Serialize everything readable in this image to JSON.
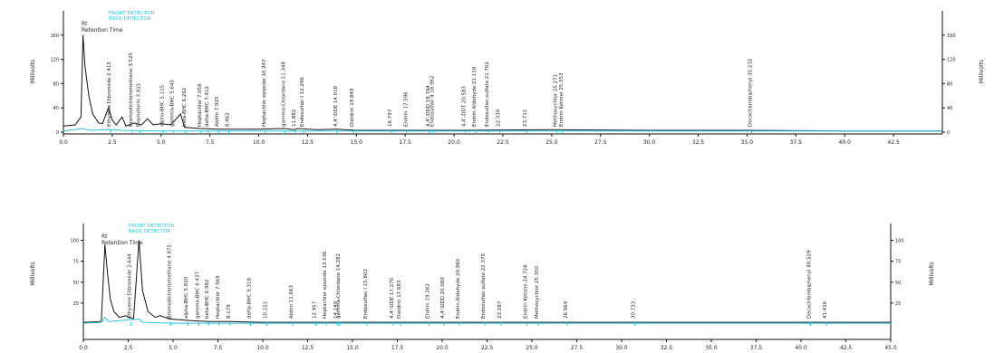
{
  "chart_data": [
    {
      "type": "line",
      "x_axis": {
        "range": [
          0.0,
          45.0
        ],
        "ticks": [
          0.0,
          2.5,
          5.0,
          7.5,
          10.0,
          12.5,
          15.0,
          17.5,
          20.0,
          22.5,
          25.0,
          27.5,
          30.0,
          32.5,
          35.0,
          37.5,
          40.0,
          42.5
        ],
        "tick_labels": [
          "0.0",
          "2.5",
          "5.0",
          "7.5",
          "10.0",
          "12.5",
          "15.0",
          "17.5",
          "20.0",
          "22.5",
          "25.0",
          "27.5",
          "30.0",
          "32.5",
          "35.0",
          "37.5",
          "40.0",
          "42.5"
        ]
      },
      "y_axis": {
        "label": "Millivolts",
        "right_label": "Millivolts",
        "range": [
          0,
          200
        ],
        "ticks": [
          0,
          40,
          80,
          120,
          160
        ],
        "tick_labels": [
          "0",
          "40",
          "80",
          "120",
          "160"
        ],
        "right_tick_labels": [
          "0",
          "40",
          "80",
          "120",
          "160"
        ]
      },
      "legend": [
        "FRONT DETECTOR",
        "BACK DETECTOR"
      ],
      "legend_colors": [
        "#22c4e0",
        "#22c4e0"
      ],
      "annotations": [
        "Rt",
        "Retention Time"
      ],
      "grid": false,
      "series": [
        {
          "name": "FRONT DETECTOR",
          "color": "#111111",
          "points": [
            [
              0.0,
              10
            ],
            [
              0.6,
              12
            ],
            [
              0.9,
              25
            ],
            [
              1.0,
              160
            ],
            [
              1.1,
              110
            ],
            [
              1.3,
              60
            ],
            [
              1.5,
              30
            ],
            [
              1.8,
              15
            ],
            [
              2.0,
              14
            ],
            [
              2.3,
              40
            ],
            [
              2.5,
              20
            ],
            [
              2.7,
              12
            ],
            [
              3.0,
              25
            ],
            [
              3.2,
              10
            ],
            [
              3.6,
              15
            ],
            [
              4.0,
              12
            ],
            [
              4.3,
              22
            ],
            [
              4.6,
              12
            ],
            [
              5.0,
              14
            ],
            [
              5.5,
              12
            ],
            [
              6.0,
              30
            ],
            [
              6.2,
              8
            ],
            [
              7.0,
              6
            ],
            [
              8.0,
              5
            ],
            [
              10.0,
              5
            ],
            [
              11.3,
              6
            ],
            [
              11.8,
              4
            ],
            [
              12.0,
              6
            ],
            [
              13.0,
              4
            ],
            [
              14.0,
              5
            ],
            [
              15.0,
              3
            ],
            [
              20.0,
              3
            ],
            [
              25.0,
              4
            ],
            [
              30.0,
              3
            ],
            [
              35.0,
              3
            ],
            [
              40.0,
              2
            ],
            [
              45.0,
              2
            ]
          ]
        },
        {
          "name": "BACK DETECTOR",
          "color": "#22c4e0",
          "points": [
            [
              0.0,
              2
            ],
            [
              1.0,
              6
            ],
            [
              1.2,
              4
            ],
            [
              1.5,
              3
            ],
            [
              2.3,
              4
            ],
            [
              3.0,
              3
            ],
            [
              5.0,
              2
            ],
            [
              10.0,
              2
            ],
            [
              20.0,
              2
            ],
            [
              30.0,
              2
            ],
            [
              45.0,
              2
            ]
          ]
        }
      ],
      "peaks": [
        {
          "label": "Ethylene Dibromide 2.415",
          "rt": 2.415
        },
        {
          "label": "Bromodichloromethane 3.525",
          "rt": 3.525
        },
        {
          "label": "Bromoform 3.915",
          "rt": 3.915
        },
        {
          "label": "alpha-BHC 5.115",
          "rt": 5.115
        },
        {
          "label": "gamma-BHC 5.645",
          "rt": 5.645
        },
        {
          "label": "beta-BHC 6.262",
          "rt": 6.262
        },
        {
          "label": "Heptachlor 7.058",
          "rt": 7.058
        },
        {
          "label": "delta-BHC 7.412",
          "rt": 7.412
        },
        {
          "label": "Aldrin 7.925",
          "rt": 7.925
        },
        {
          "label": "8.462",
          "rt": 8.462
        },
        {
          "label": "Heptachlor epoxide 10.347",
          "rt": 10.347
        },
        {
          "label": "gamma-Chlordane 11.348",
          "rt": 11.348
        },
        {
          "label": "11.882",
          "rt": 11.882
        },
        {
          "label": "Endosulfan I 12.296",
          "rt": 12.296
        },
        {
          "label": "4,4'-DDE 14.018",
          "rt": 14.018
        },
        {
          "label": "Dieldrin 14.849",
          "rt": 14.849
        },
        {
          "label": "16.797",
          "rt": 16.797
        },
        {
          "label": "Endrin 17.596",
          "rt": 17.596
        },
        {
          "label": "4,4'-DDD 18.744",
          "rt": 18.744
        },
        {
          "label": "Endosulfan II 18.962",
          "rt": 18.962
        },
        {
          "label": "4,4'-DDT 20.583",
          "rt": 20.583
        },
        {
          "label": "Endrin Aldehyde 21.119",
          "rt": 21.119
        },
        {
          "label": "Endosulfan sulfate 21.762",
          "rt": 21.762
        },
        {
          "label": "22.339",
          "rt": 22.339
        },
        {
          "label": "23.711",
          "rt": 23.711
        },
        {
          "label": "Methoxychlor 25.271",
          "rt": 25.271
        },
        {
          "label": "Endrin Ketone 25.553",
          "rt": 25.553
        },
        {
          "label": "Decachlorobiphenyl 35.232",
          "rt": 35.232
        }
      ]
    },
    {
      "type": "line",
      "x_axis": {
        "range": [
          0.0,
          45.0
        ],
        "ticks": [
          0.0,
          2.5,
          5.0,
          7.5,
          10.0,
          12.5,
          15.0,
          17.5,
          20.0,
          22.5,
          25.0,
          27.5,
          30.0,
          32.5,
          35.0,
          37.5,
          40.0,
          42.5,
          45.0
        ],
        "tick_labels": [
          "0.0",
          "2.5",
          "5.0",
          "7.5",
          "10.0",
          "12.5",
          "15.0",
          "17.5",
          "20.0",
          "22.5",
          "25.0",
          "27.5",
          "30.0",
          "32.5",
          "35.0",
          "37.5",
          "40.0",
          "42.5",
          "45.0"
        ]
      },
      "y_axis": {
        "label": "Millivolts",
        "right_label": "Millivolts",
        "range": [
          0,
          120
        ],
        "ticks": [
          25,
          50,
          75,
          100
        ],
        "tick_labels": [
          "25",
          "50",
          "75",
          "100"
        ],
        "right_tick_labels": [
          "25",
          "50",
          "75",
          "100"
        ]
      },
      "legend": [
        "FRONT DETECTOR",
        "BACK DETECTOR"
      ],
      "legend_colors": [
        "#22c4e0",
        "#22c4e0"
      ],
      "annotations": [
        "Rt",
        "Retention Time"
      ],
      "grid": false,
      "series": [
        {
          "name": "FRONT DETECTOR",
          "color": "#111111",
          "points": [
            [
              0.0,
              2
            ],
            [
              1.0,
              3
            ],
            [
              1.2,
              95
            ],
            [
              1.35,
              60
            ],
            [
              1.5,
              30
            ],
            [
              1.7,
              15
            ],
            [
              2.0,
              8
            ],
            [
              2.4,
              10
            ],
            [
              2.8,
              6
            ],
            [
              3.1,
              100
            ],
            [
              3.3,
              40
            ],
            [
              3.6,
              15
            ],
            [
              4.0,
              8
            ],
            [
              4.3,
              10
            ],
            [
              4.8,
              6
            ],
            [
              5.5,
              5
            ],
            [
              6.0,
              4
            ],
            [
              7.0,
              3
            ],
            [
              8.0,
              3
            ],
            [
              10.0,
              2
            ],
            [
              15.0,
              2
            ],
            [
              20.0,
              2
            ],
            [
              30.0,
              2
            ],
            [
              45.0,
              2
            ]
          ]
        },
        {
          "name": "BACK DETECTOR",
          "color": "#22c4e0",
          "points": [
            [
              0.0,
              1
            ],
            [
              1.0,
              2
            ],
            [
              1.2,
              8
            ],
            [
              1.4,
              3
            ],
            [
              3.1,
              6
            ],
            [
              3.3,
              2
            ],
            [
              5.0,
              1
            ],
            [
              10.0,
              1
            ],
            [
              20.0,
              1
            ],
            [
              30.0,
              1
            ],
            [
              45.0,
              1
            ]
          ]
        }
      ],
      "peaks": [
        {
          "label": "Ethylene Dibromide 2.644",
          "rt": 2.644
        },
        {
          "label": "Bromodichloromethane 4.875",
          "rt": 4.875
        },
        {
          "label": "alpha-BHC 5.820",
          "rt": 5.82
        },
        {
          "label": "gamma-BHC 6.437",
          "rt": 6.437
        },
        {
          "label": "beta-BHC 6.982",
          "rt": 6.982
        },
        {
          "label": "Heptachlor 7.565",
          "rt": 7.565
        },
        {
          "label": "8.179",
          "rt": 8.179
        },
        {
          "label": "delta-BHC 9.318",
          "rt": 9.318
        },
        {
          "label": "10.221",
          "rt": 10.221
        },
        {
          "label": "Aldrin 11.663",
          "rt": 11.663
        },
        {
          "label": "12.957",
          "rt": 12.957
        },
        {
          "label": "Heptachlor epoxide 13.536",
          "rt": 13.536
        },
        {
          "label": "14.149",
          "rt": 14.149
        },
        {
          "label": "gamma-Chlordane 14.282",
          "rt": 14.282
        },
        {
          "label": "Endosulfan I 15.803",
          "rt": 15.803
        },
        {
          "label": "4,4'-DDE 17.270",
          "rt": 17.27
        },
        {
          "label": "Dieldrin 17.683",
          "rt": 17.683
        },
        {
          "label": "Endrin 19.262",
          "rt": 19.262
        },
        {
          "label": "4,4'-DDD 20.089",
          "rt": 20.089
        },
        {
          "label": "Endrin Aldehyde 20.960",
          "rt": 20.96
        },
        {
          "label": "Endosulfan sulfate 22.370",
          "rt": 22.37
        },
        {
          "label": "23.287",
          "rt": 23.287
        },
        {
          "label": "Endrin Ketone 24.728",
          "rt": 24.728
        },
        {
          "label": "Methoxychlor 25.350",
          "rt": 25.35
        },
        {
          "label": "26.969",
          "rt": 26.969
        },
        {
          "label": "30.733",
          "rt": 30.733
        },
        {
          "label": "Decachlorobiphenyl 40.529",
          "rt": 40.529
        },
        {
          "label": "41.416",
          "rt": 41.416
        }
      ]
    }
  ]
}
